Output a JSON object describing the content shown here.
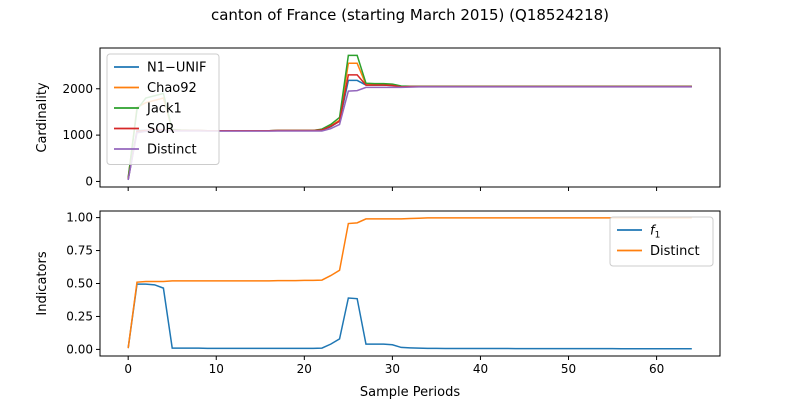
{
  "figure": {
    "title": "canton of France (starting March 2015) (Q18524218)",
    "xlabel": "Sample Periods"
  },
  "chart_data": [
    {
      "type": "line",
      "ylabel": "Cardinality",
      "xlim": [
        -3.2,
        67.2
      ],
      "ylim": [
        -120,
        2880
      ],
      "xticks": [
        0,
        10,
        20,
        30,
        40,
        50,
        60
      ],
      "yticks": [
        0,
        1000,
        2000
      ],
      "legend_position": "upper left",
      "grid": false,
      "x": [
        0,
        1,
        2,
        3,
        4,
        5,
        6,
        7,
        8,
        9,
        10,
        11,
        12,
        13,
        14,
        15,
        16,
        17,
        18,
        19,
        20,
        21,
        22,
        23,
        24,
        25,
        26,
        27,
        28,
        29,
        30,
        31,
        32,
        33,
        34,
        35,
        36,
        37,
        38,
        39,
        40,
        41,
        42,
        43,
        44,
        45,
        46,
        47,
        48,
        49,
        50,
        51,
        52,
        53,
        54,
        55,
        56,
        57,
        58,
        59,
        60,
        61,
        62,
        63,
        64
      ],
      "series": [
        {
          "name": "N1−UNIF",
          "color": "#1f77b4",
          "values": [
            40,
            1100,
            1105,
            1110,
            1105,
            1100,
            1100,
            1100,
            1100,
            1095,
            1095,
            1095,
            1095,
            1095,
            1095,
            1095,
            1095,
            1100,
            1100,
            1100,
            1100,
            1100,
            1110,
            1180,
            1300,
            2180,
            2180,
            2080,
            2080,
            2080,
            2070,
            2040,
            2050,
            2050,
            2050,
            2050,
            2050,
            2050,
            2050,
            2050,
            2050,
            2050,
            2050,
            2050,
            2050,
            2050,
            2050,
            2050,
            2050,
            2050,
            2050,
            2050,
            2050,
            2050,
            2050,
            2050,
            2050,
            2050,
            2050,
            2050,
            2050,
            2050,
            2050,
            2050,
            2050
          ]
        },
        {
          "name": "Chao92",
          "color": "#ff7f0e",
          "values": [
            60,
            1600,
            1700,
            1750,
            1800,
            1110,
            1100,
            1100,
            1100,
            1095,
            1095,
            1095,
            1095,
            1095,
            1095,
            1095,
            1095,
            1100,
            1100,
            1100,
            1100,
            1100,
            1120,
            1200,
            1320,
            2550,
            2550,
            2090,
            2090,
            2090,
            2080,
            2050,
            2050,
            2050,
            2050,
            2050,
            2050,
            2050,
            2050,
            2050,
            2050,
            2050,
            2050,
            2050,
            2050,
            2050,
            2050,
            2050,
            2050,
            2050,
            2050,
            2050,
            2050,
            2050,
            2050,
            2050,
            2050,
            2050,
            2050,
            2050,
            2050,
            2050,
            2050,
            2050,
            2050
          ]
        },
        {
          "name": "Jack1",
          "color": "#2ca02c",
          "values": [
            80,
            1550,
            1800,
            1850,
            1900,
            1120,
            1110,
            1105,
            1100,
            1095,
            1095,
            1095,
            1095,
            1095,
            1095,
            1095,
            1095,
            1100,
            1100,
            1100,
            1100,
            1100,
            1130,
            1230,
            1380,
            2720,
            2720,
            2120,
            2110,
            2110,
            2100,
            2060,
            2055,
            2055,
            2055,
            2055,
            2055,
            2055,
            2055,
            2055,
            2055,
            2055,
            2055,
            2055,
            2055,
            2055,
            2055,
            2055,
            2055,
            2055,
            2055,
            2055,
            2055,
            2055,
            2055,
            2055,
            2055,
            2055,
            2055,
            2055,
            2055,
            2055,
            2055,
            2055,
            2055
          ]
        },
        {
          "name": "SOR",
          "color": "#d62728",
          "values": [
            50,
            1080,
            1100,
            1120,
            1110,
            1100,
            1100,
            1100,
            1100,
            1095,
            1095,
            1095,
            1095,
            1095,
            1095,
            1095,
            1095,
            1100,
            1100,
            1100,
            1100,
            1100,
            1110,
            1190,
            1300,
            2300,
            2300,
            2080,
            2080,
            2080,
            2070,
            2040,
            2050,
            2050,
            2050,
            2050,
            2050,
            2050,
            2050,
            2050,
            2050,
            2050,
            2050,
            2050,
            2050,
            2050,
            2050,
            2050,
            2050,
            2050,
            2050,
            2050,
            2050,
            2050,
            2050,
            2050,
            2050,
            2050,
            2050,
            2050,
            2050,
            2050,
            2050,
            2050,
            2050
          ]
        },
        {
          "name": "Distinct",
          "color": "#9467bd",
          "values": [
            30,
            1050,
            1080,
            1100,
            1100,
            1090,
            1090,
            1090,
            1090,
            1085,
            1085,
            1085,
            1085,
            1085,
            1085,
            1085,
            1085,
            1090,
            1090,
            1090,
            1090,
            1090,
            1090,
            1140,
            1230,
            1950,
            1960,
            2030,
            2030,
            2030,
            2030,
            2030,
            2035,
            2040,
            2040,
            2040,
            2040,
            2040,
            2040,
            2040,
            2040,
            2040,
            2040,
            2040,
            2040,
            2040,
            2040,
            2040,
            2040,
            2040,
            2040,
            2040,
            2040,
            2040,
            2040,
            2040,
            2040,
            2040,
            2040,
            2040,
            2040,
            2040,
            2040,
            2040,
            2040
          ]
        }
      ]
    },
    {
      "type": "line",
      "ylabel": "Indicators",
      "xlim": [
        -3.2,
        67.2
      ],
      "ylim": [
        -0.05,
        1.05
      ],
      "xticks": [
        0,
        10,
        20,
        30,
        40,
        50,
        60
      ],
      "yticks": [
        0.0,
        0.25,
        0.5,
        0.75,
        1.0
      ],
      "ytick_labels": [
        "0.00",
        "0.25",
        "0.50",
        "0.75",
        "1.00"
      ],
      "legend_position": "upper right",
      "grid": false,
      "x": [
        0,
        1,
        2,
        3,
        4,
        5,
        6,
        7,
        8,
        9,
        10,
        11,
        12,
        13,
        14,
        15,
        16,
        17,
        18,
        19,
        20,
        21,
        22,
        23,
        24,
        25,
        26,
        27,
        28,
        29,
        30,
        31,
        32,
        33,
        34,
        35,
        36,
        37,
        38,
        39,
        40,
        41,
        42,
        43,
        44,
        45,
        46,
        47,
        48,
        49,
        50,
        51,
        52,
        53,
        54,
        55,
        56,
        57,
        58,
        59,
        60,
        61,
        62,
        63,
        64
      ],
      "series": [
        {
          "name": "f",
          "name_sub": "1",
          "color": "#1f77b4",
          "values": [
            0.01,
            0.495,
            0.495,
            0.49,
            0.465,
            0.01,
            0.01,
            0.01,
            0.01,
            0.008,
            0.008,
            0.008,
            0.008,
            0.008,
            0.008,
            0.008,
            0.008,
            0.008,
            0.008,
            0.008,
            0.008,
            0.008,
            0.01,
            0.04,
            0.08,
            0.39,
            0.385,
            0.04,
            0.04,
            0.04,
            0.035,
            0.015,
            0.012,
            0.01,
            0.008,
            0.008,
            0.007,
            0.007,
            0.007,
            0.007,
            0.007,
            0.007,
            0.007,
            0.007,
            0.006,
            0.006,
            0.006,
            0.006,
            0.006,
            0.006,
            0.006,
            0.006,
            0.006,
            0.006,
            0.006,
            0.006,
            0.005,
            0.005,
            0.005,
            0.005,
            0.005,
            0.005,
            0.005,
            0.005,
            0.005
          ]
        },
        {
          "name": "Distinct",
          "color": "#ff7f0e",
          "values": [
            0.01,
            0.51,
            0.515,
            0.515,
            0.515,
            0.52,
            0.52,
            0.52,
            0.52,
            0.52,
            0.52,
            0.52,
            0.52,
            0.52,
            0.52,
            0.52,
            0.52,
            0.522,
            0.522,
            0.522,
            0.524,
            0.524,
            0.526,
            0.56,
            0.6,
            0.955,
            0.96,
            0.99,
            0.99,
            0.99,
            0.99,
            0.99,
            0.993,
            0.995,
            0.998,
            0.998,
            0.998,
            0.998,
            0.998,
            0.998,
            0.998,
            0.998,
            0.998,
            0.998,
            0.998,
            0.998,
            0.998,
            0.998,
            0.998,
            0.998,
            0.998,
            0.998,
            0.998,
            0.998,
            0.998,
            0.998,
            0.998,
            0.998,
            0.998,
            0.998,
            0.998,
            0.998,
            0.998,
            0.998,
            0.998
          ]
        }
      ]
    }
  ]
}
